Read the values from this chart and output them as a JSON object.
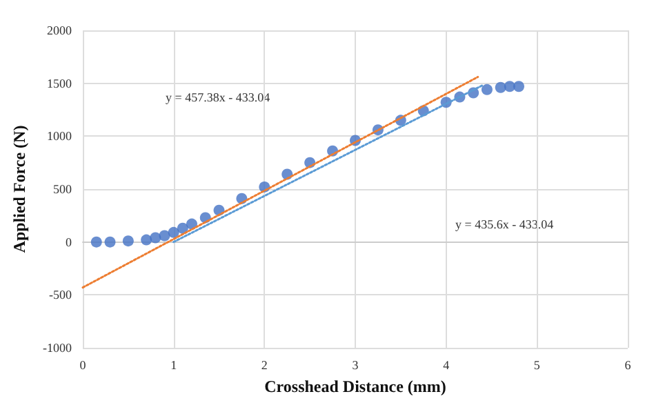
{
  "chart_data": {
    "type": "scatter",
    "xlabel": "Crosshead Distance (mm)",
    "ylabel": "Applied Force (N)",
    "series": [
      {
        "color": "#4472c4",
        "marker": "circle",
        "x": [
          0.15,
          0.3,
          0.5,
          0.7,
          0.8,
          0.9,
          1.0,
          1.1,
          1.2,
          1.35,
          1.5,
          1.75,
          2.0,
          2.25,
          2.5,
          2.75,
          3.0,
          3.25,
          3.5,
          3.75,
          4.0,
          4.15,
          4.3,
          4.45,
          4.6,
          4.7,
          4.8
        ],
        "values": [
          0,
          0,
          10,
          20,
          40,
          60,
          90,
          130,
          170,
          230,
          300,
          410,
          520,
          640,
          750,
          860,
          960,
          1060,
          1150,
          1240,
          1320,
          1370,
          1410,
          1440,
          1460,
          1470,
          1470
        ]
      },
      {
        "type": "line",
        "color": "#ed7d31",
        "marker": "none",
        "line_style": "dotted",
        "x": [
          0,
          4.35
        ],
        "values": [
          -430,
          1560
        ]
      },
      {
        "type": "line",
        "color": "#5b9bd5",
        "marker": "none",
        "line_style": "dotted",
        "x": [
          1.0,
          4.4
        ],
        "values": [
          0,
          1480
        ]
      }
    ],
    "annotations": [
      "y = 457.38x - 433.04",
      "y = 435.6x - 433.04"
    ],
    "xlim": [
      0,
      6
    ],
    "xticks": [
      0,
      1,
      2,
      3,
      4,
      5,
      6
    ],
    "ylim": [
      -1000,
      2000
    ],
    "yticks": [
      -1000,
      -500,
      0,
      500,
      1000,
      1500,
      2000
    ],
    "grid": true
  }
}
